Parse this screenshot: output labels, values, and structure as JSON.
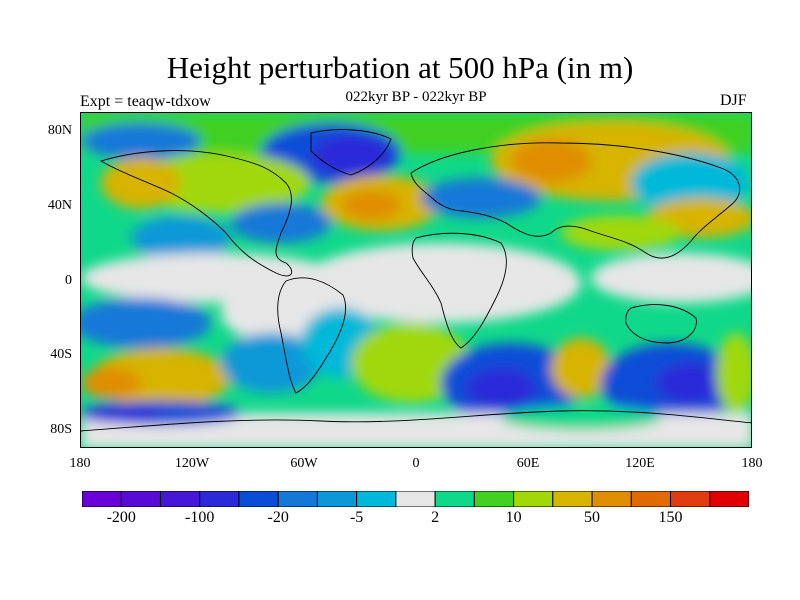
{
  "title": "Height perturbation at 500 hPa (in m)",
  "subtitle": "022kyr BP - 022kyr BP",
  "left_label": "Expt = teaqw-tdxow",
  "right_label": "DJF",
  "lat_labels": [
    "80N",
    "40N",
    "0",
    "40S",
    "80S"
  ],
  "lon_labels": [
    "180",
    "120W",
    "60W",
    "0",
    "60E",
    "120E",
    "180"
  ],
  "colorbar": {
    "colors": [
      "#6a00d8",
      "#5a0ad6",
      "#4418d6",
      "#2a2ad8",
      "#0a4ed8",
      "#1478d8",
      "#0c98d8",
      "#00b8d8",
      "#e6e6e6",
      "#10d88a",
      "#40d020",
      "#a0d80a",
      "#d6b400",
      "#e08e00",
      "#e06a00",
      "#e03c10",
      "#e00000"
    ],
    "tick_labels": [
      "-200",
      "-100",
      "-20",
      "-5",
      "2",
      "10",
      "50",
      "150"
    ]
  }
}
